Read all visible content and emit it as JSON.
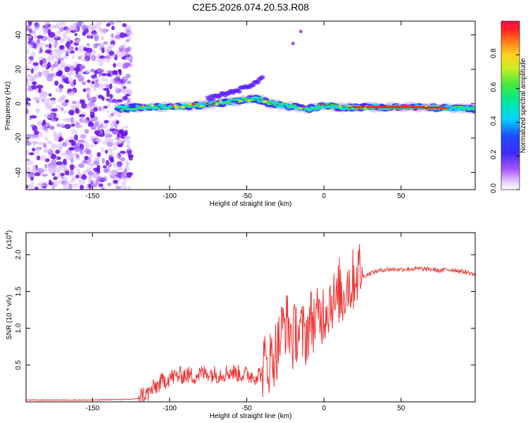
{
  "title": "C2E5.2026.074.20.53.R08",
  "colors": {
    "snr_line": "#ee3333",
    "scatter_purple": "#8a2be2",
    "band_blue": "#1f2dff",
    "band_cyan": "#00e5ff",
    "band_green": "#44dd44",
    "band_red": "#ff2222"
  },
  "chart_data": [
    {
      "type": "heatmap",
      "name": "spectrogram",
      "xlabel": "Height of straight line (km)",
      "ylabel": "Frequency (Hz)",
      "xlim": [
        -193,
        98
      ],
      "ylim": [
        -50,
        48
      ],
      "xticks": [
        -150,
        -100,
        -50,
        0,
        50
      ],
      "xtick_labels": [
        "-150",
        "-100",
        "-50",
        "0",
        "50"
      ],
      "yticks": [
        -40,
        -20,
        0,
        20,
        40
      ],
      "ytick_labels": [
        "-40",
        "-20",
        "0",
        "20",
        "40"
      ],
      "colorbar": {
        "label": "Normalized spectral amplitude",
        "range": [
          0,
          1
        ],
        "ticks": [
          0.0,
          0.2,
          0.4,
          0.6,
          0.8
        ],
        "tick_labels": [
          "0.0",
          "0.2",
          "0.4",
          "0.6",
          "0.8"
        ]
      },
      "noise_region_km": [
        -193,
        -125
      ],
      "band_centerline": {
        "x": [
          -135,
          -120,
          -100,
          -80,
          -60,
          -45,
          -40,
          -35,
          -25,
          -10,
          0,
          10,
          30,
          60,
          98
        ],
        "y": [
          -3,
          -2,
          -2,
          -1,
          1,
          3,
          2,
          0,
          -1,
          -3,
          -1,
          -2,
          -2,
          -2,
          -3
        ]
      },
      "band_upper_branch": {
        "x": [
          -75,
          -55,
          -42,
          -40
        ],
        "y": [
          3,
          8,
          13,
          16
        ]
      },
      "isolated_points": [
        {
          "x": -20,
          "y": 35
        },
        {
          "x": -15,
          "y": 42
        }
      ]
    },
    {
      "type": "line",
      "name": "snr",
      "xlabel": "Height of straight line (km)",
      "ylabel": "SNR (10 * v/v)",
      "multiplier_label": "(x10",
      "multiplier_exp": "4",
      "multiplier_close": ")",
      "xlim": [
        -193,
        98
      ],
      "ylim": [
        0,
        2.3
      ],
      "xticks": [
        -150,
        -100,
        -50,
        0,
        50
      ],
      "xtick_labels": [
        "-150",
        "-100",
        "-50",
        "0",
        "50"
      ],
      "yticks": [
        0.5,
        1.0,
        1.5,
        2.0
      ],
      "ytick_labels": [
        "0.5",
        "1.0",
        "1.5",
        "2.0"
      ],
      "series": [
        {
          "name": "SNR",
          "x": [
            -193,
            -150,
            -125,
            -115,
            -110,
            -105,
            -100,
            -95,
            -90,
            -85,
            -80,
            -75,
            -70,
            -65,
            -60,
            -55,
            -50,
            -45,
            -40,
            -35,
            -30,
            -27,
            -25,
            -23,
            -20,
            -18,
            -15,
            -12,
            -10,
            -8,
            -5,
            -2,
            0,
            3,
            5,
            8,
            10,
            12,
            15,
            18,
            20,
            23,
            25,
            30,
            35,
            40,
            50,
            60,
            70,
            75,
            80,
            85,
            90,
            95,
            98
          ],
          "y": [
            0.02,
            0.02,
            0.03,
            0.05,
            0.14,
            0.22,
            0.28,
            0.3,
            0.32,
            0.3,
            0.33,
            0.35,
            0.32,
            0.34,
            0.36,
            0.33,
            0.32,
            0.3,
            0.34,
            0.42,
            0.6,
            0.85,
            0.95,
            0.9,
            0.7,
            0.85,
            0.8,
            0.75,
            0.9,
            1.0,
            0.95,
            1.05,
            1.1,
            1.2,
            1.3,
            1.15,
            1.4,
            1.25,
            1.5,
            1.45,
            1.6,
            1.65,
            1.7,
            1.75,
            1.78,
            1.8,
            1.8,
            1.81,
            1.8,
            1.78,
            1.8,
            1.79,
            1.77,
            1.75,
            1.72
          ]
        }
      ]
    }
  ]
}
